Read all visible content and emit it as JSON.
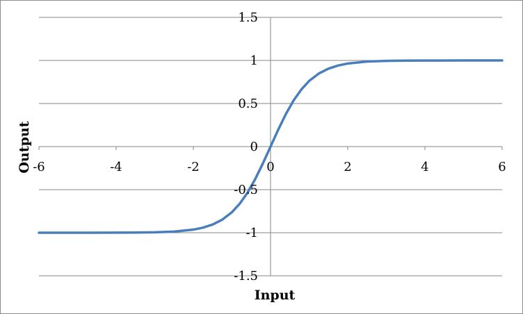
{
  "chart_data": {
    "type": "line",
    "title": "",
    "xlabel": "Input",
    "ylabel": "Output",
    "xlim": [
      -6,
      6
    ],
    "ylim": [
      -1.5,
      1.5
    ],
    "x_ticks": [
      -6,
      -4,
      -2,
      0,
      2,
      4,
      6
    ],
    "x_tick_labels": [
      "-6",
      "-4",
      "-2",
      "0",
      "2",
      "4",
      "6"
    ],
    "y_ticks": [
      -1.5,
      -1,
      -0.5,
      0,
      0.5,
      1,
      1.5
    ],
    "y_tick_labels": [
      "-1.5",
      "-1",
      "-0.5",
      "0",
      "0.5",
      "1",
      "1.5"
    ],
    "grid": "horizontal",
    "legend": "none",
    "series_color": "#4a7ebb",
    "series": [
      {
        "x": [
          -6,
          -5,
          -4,
          -3.5,
          -3,
          -2.5,
          -2,
          -1.75,
          -1.5,
          -1.25,
          -1,
          -0.8,
          -0.6,
          -0.4,
          -0.2,
          0,
          0.2,
          0.4,
          0.6,
          0.8,
          1,
          1.25,
          1.5,
          1.75,
          2,
          2.5,
          3,
          3.5,
          4,
          5,
          6
        ],
        "values": [
          -1,
          -1,
          -0.999,
          -0.998,
          -0.995,
          -0.987,
          -0.964,
          -0.941,
          -0.905,
          -0.848,
          -0.762,
          -0.664,
          -0.537,
          -0.38,
          -0.197,
          0,
          0.197,
          0.38,
          0.537,
          0.664,
          0.762,
          0.848,
          0.905,
          0.941,
          0.964,
          0.987,
          0.995,
          0.998,
          0.999,
          1,
          1
        ]
      }
    ]
  }
}
